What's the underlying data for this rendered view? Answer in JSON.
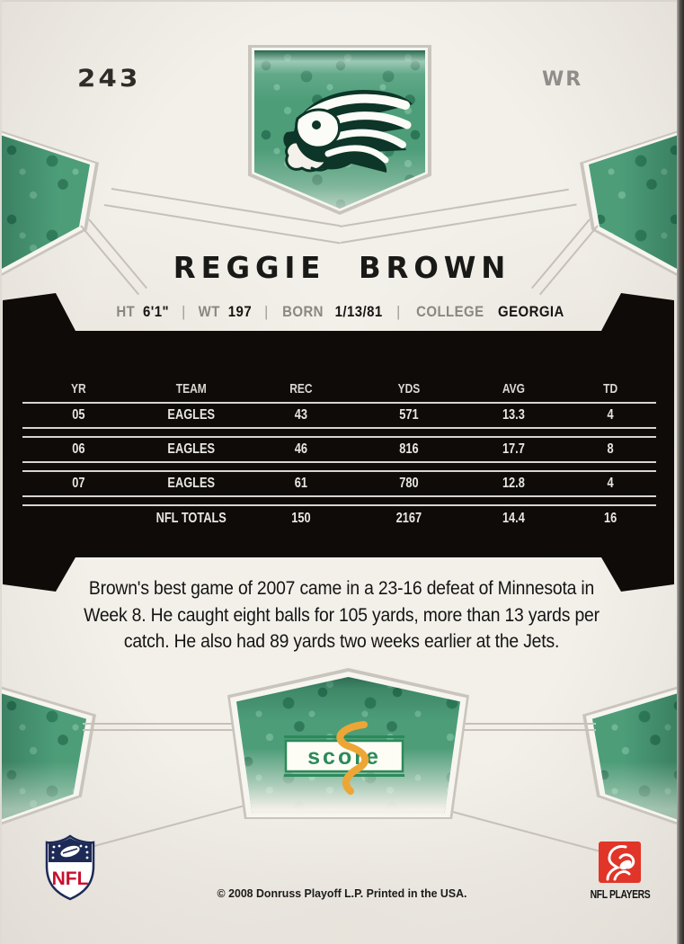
{
  "card": {
    "number": "243",
    "position": "WR",
    "player_name": "REGGIE BROWN",
    "bio": {
      "ht_label": "HT",
      "ht": "6'1\"",
      "wt_label": "WT",
      "wt": "197",
      "born_label": "BORN",
      "born": "1/13/81",
      "college_label": "COLLEGE",
      "college": "GEORGIA",
      "separator": "|"
    }
  },
  "stats_table": {
    "headers": [
      "YR",
      "TEAM",
      "REC",
      "YDS",
      "AVG",
      "TD"
    ],
    "rows": [
      [
        "05",
        "EAGLES",
        "43",
        "571",
        "13.3",
        "4"
      ],
      [
        "06",
        "EAGLES",
        "46",
        "816",
        "17.7",
        "8"
      ],
      [
        "07",
        "EAGLES",
        "61",
        "780",
        "12.8",
        "4"
      ]
    ],
    "totals": [
      "",
      "NFL TOTALS",
      "150",
      "2167",
      "14.4",
      "16"
    ]
  },
  "note": "Brown's best game of 2007 came in a 23-16 defeat of Minnesota in Week 8. He caught eight balls for 105 yards, more than 13 yards per catch. He also had 89 yards two weeks earlier at the Jets.",
  "footer": {
    "copyright": "© 2008 Donruss Playoff L.P. Printed in the USA.",
    "nfl_shield_label": "NFL",
    "nfl_players_label": "NFL PLAYERS"
  },
  "logos": {
    "team_logo": "philadelphia-eagles-eagle-head",
    "brand_logo": "score",
    "brand_text": "score"
  },
  "colors": {
    "green": "#4d9d79",
    "green_dark": "#1f6f4d",
    "panel_black": "#0e0b09",
    "score_green": "#2c8a5a",
    "score_orange": "#eda636",
    "nfl_navy": "#1e2a56",
    "nfl_red": "#c8102e",
    "players_red": "#e03528"
  }
}
